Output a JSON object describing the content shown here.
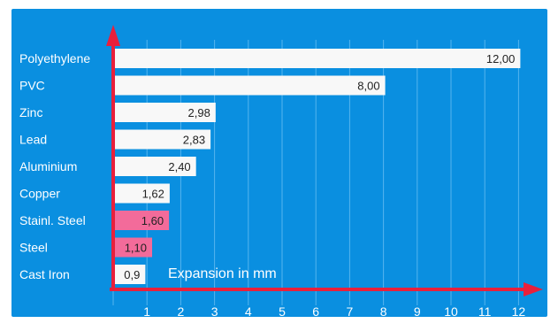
{
  "colors": {
    "background": "#0a8fe0",
    "bar": "#f8f8f8",
    "bar_highlight": "#f36b9a",
    "axis": "#e8203c",
    "grid": "#55b5ee",
    "category_text": "#ffffff",
    "value_text": "#222222",
    "tick_text": "#ffffff"
  },
  "chart_data": {
    "type": "bar",
    "orientation": "horizontal",
    "categories": [
      "Polyethylene",
      "PVC",
      "Zinc",
      "Lead",
      "Aluminium",
      "Copper",
      "Stainl. Steel",
      "Steel",
      "Cast Iron"
    ],
    "values": [
      12.0,
      8.0,
      2.98,
      2.83,
      2.4,
      1.62,
      1.6,
      1.1,
      0.9
    ],
    "value_labels": [
      "12,00",
      "8,00",
      "2,98",
      "2,83",
      "2,40",
      "1,62",
      "1,60",
      "1,10",
      "0,9"
    ],
    "highlighted": [
      false,
      false,
      false,
      false,
      false,
      false,
      true,
      true,
      false
    ],
    "xlabel": "Expansion in mm",
    "xticks": [
      "1",
      "2",
      "3",
      "4",
      "5",
      "6",
      "7",
      "8",
      "9",
      "10",
      "11",
      "12"
    ],
    "xlim": [
      0,
      12
    ],
    "grid": true
  }
}
